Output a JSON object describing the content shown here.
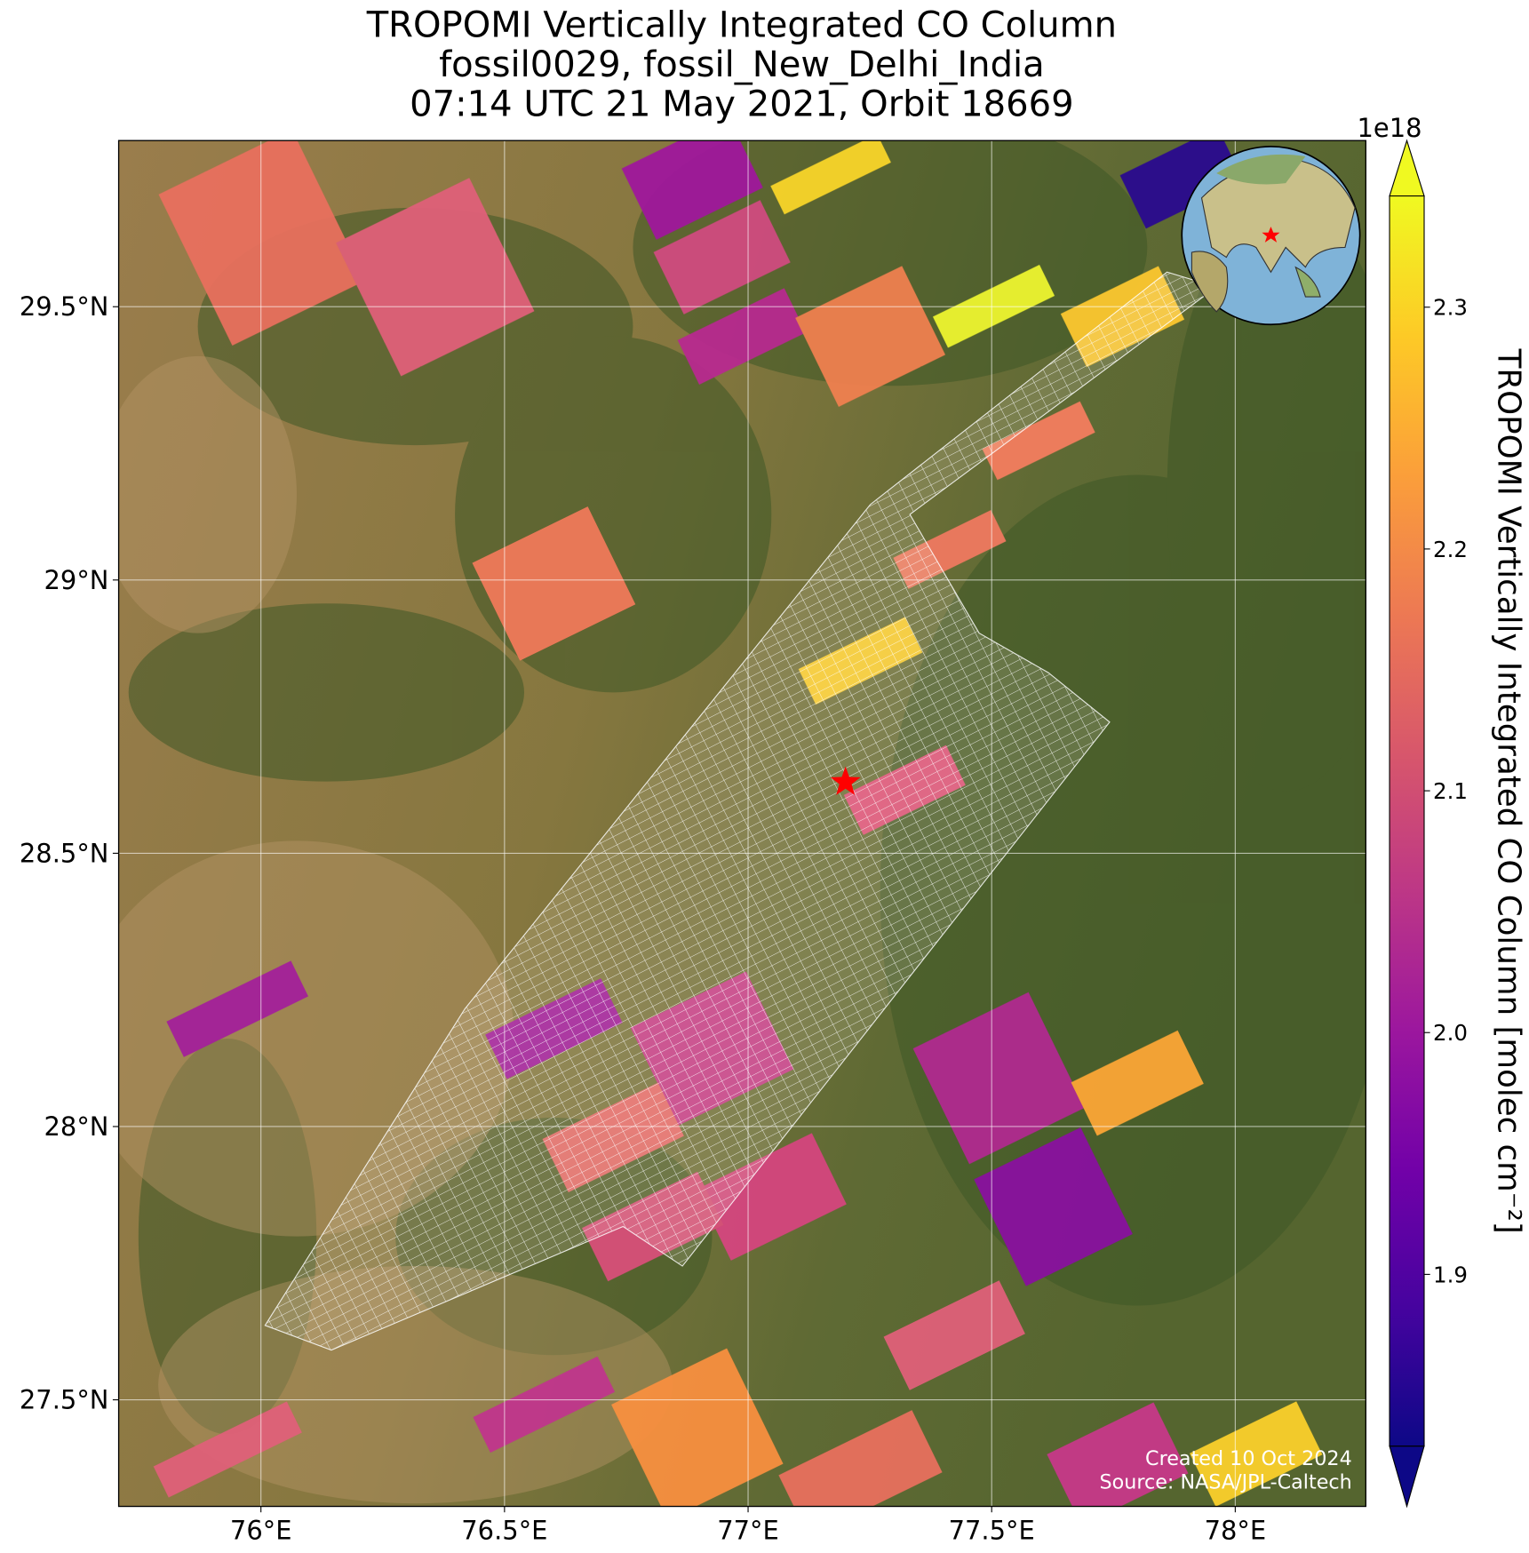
{
  "chart_data": {
    "type": "map",
    "title": [
      "TROPOMI Vertically Integrated CO Column",
      "fossil0029, fossil_New_Delhi_India",
      "07:14 UTC 21 May 2021, Orbit 18669"
    ],
    "xlim": [
      75.708,
      78.268
    ],
    "ylim": [
      27.305,
      29.804
    ],
    "xticks": [
      {
        "value": 76,
        "label": "76°E"
      },
      {
        "value": 76.5,
        "label": "76.5°E"
      },
      {
        "value": 77,
        "label": "77°E"
      },
      {
        "value": 77.5,
        "label": "77.5°E"
      },
      {
        "value": 78,
        "label": "78°E"
      }
    ],
    "yticks": [
      {
        "value": 27.5,
        "label": "27.5°N"
      },
      {
        "value": 28,
        "label": "28°N"
      },
      {
        "value": 28.5,
        "label": "28.5°N"
      },
      {
        "value": 29,
        "label": "29°N"
      },
      {
        "value": 29.5,
        "label": "29.5°N"
      }
    ],
    "grid": true,
    "marker": {
      "lon": 77.2,
      "lat": 28.63,
      "color": "#ff0000"
    },
    "colorbar": {
      "label": "TROPOMI Vertically Integrated CO Column [molec cm⁻²]",
      "offset_label": "1e18",
      "colormap": "plasma",
      "clim": [
        1.829,
        2.346
      ],
      "ticks": [
        1.9,
        {
          "value": 2,
          "label": "2.0"
        },
        2.1,
        2.2,
        2.3
      ]
    },
    "annotations": [
      "Created 10 Oct 2024",
      "Source: NASA/JPL-Caltech"
    ]
  }
}
